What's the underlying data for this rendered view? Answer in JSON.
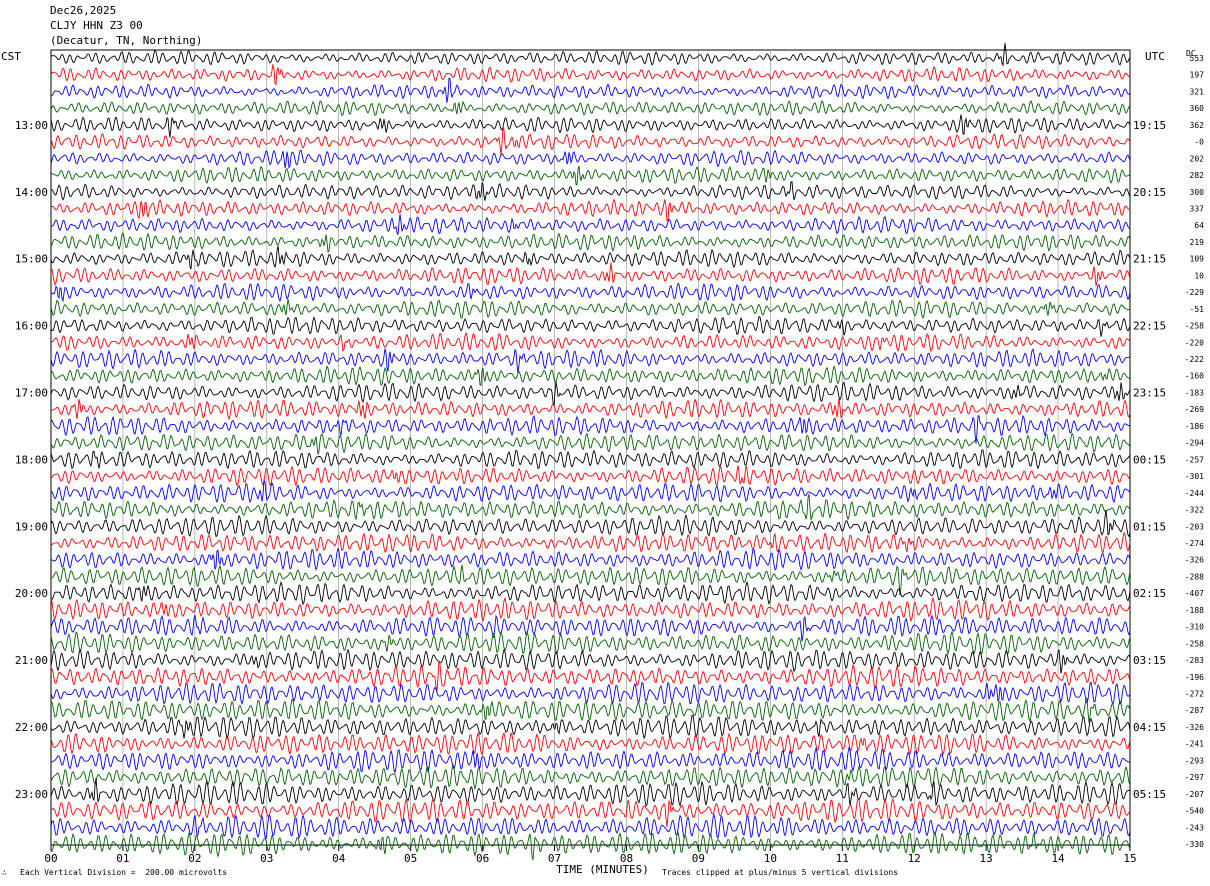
{
  "header": {
    "date": "Dec26,2025",
    "station": "CLJY HHN Z3 00",
    "location": "(Decatur, TN, Northing)"
  },
  "left_axis_label": "CST",
  "right_axis_label": "UTC",
  "dc_label": "DC",
  "footer": {
    "scale_note": "Each Vertical Division =  200.00 microvolts",
    "clip_note": "Traces clipped at plus/minus 5 vertical divisions",
    "corner_mark": "∴"
  },
  "colors": {
    "trace_cycle": [
      "#000000",
      "#ff0000",
      "#0000ff",
      "#006400"
    ],
    "grid": "#888888"
  },
  "chart_data": {
    "type": "line",
    "subtype": "helicorder",
    "xlabel": "TIME (MINUTES)",
    "x_ticks": [
      "00",
      "01",
      "02",
      "03",
      "04",
      "05",
      "06",
      "07",
      "08",
      "09",
      "10",
      "11",
      "12",
      "13",
      "14",
      "15"
    ],
    "xlim": [
      0,
      15
    ],
    "left_hour_labels": [
      "13:00",
      "14:00",
      "15:00",
      "16:00",
      "17:00",
      "18:00",
      "19:00",
      "20:00",
      "21:00",
      "22:00",
      "23:00"
    ],
    "right_hour_labels": [
      "19:15",
      "20:15",
      "21:15",
      "22:15",
      "23:15",
      "00:15",
      "01:15",
      "02:15",
      "03:15",
      "04:15",
      "05:15"
    ],
    "lines_per_hour": 4,
    "label_line_offset": 4,
    "dc_offsets": [
      "553",
      "197",
      "321",
      "360",
      "362",
      "-0",
      "202",
      "282",
      "300",
      "337",
      "64",
      "219",
      "109",
      "10",
      "-229",
      "-51",
      "-258",
      "-220",
      "-222",
      "-160",
      "-183",
      "-269",
      "-186",
      "-294",
      "-257",
      "-301",
      "-244",
      "-322",
      "-203",
      "-274",
      "-326",
      "-288",
      "-407",
      "-188",
      "-310",
      "-258",
      "-283",
      "-196",
      "-272",
      "-287",
      "-326",
      "-241",
      "-293",
      "-297",
      "-207",
      "-540",
      "-243",
      "-330"
    ],
    "grid": true
  }
}
